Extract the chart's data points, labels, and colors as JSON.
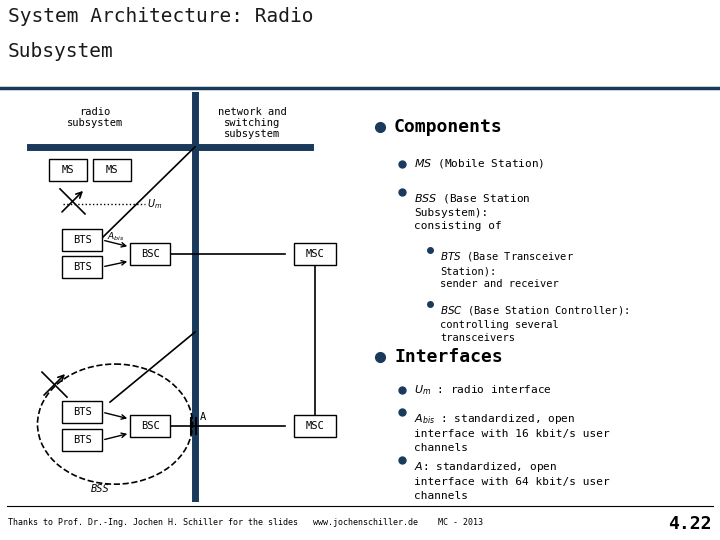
{
  "title_line1": "System Architecture: Radio",
  "title_line2": "Subsystem",
  "title_color": "#1a1a1a",
  "bg_color": "#ffffff",
  "dark_blue": "#1a3a5c",
  "footer": "Thanks to Prof. Dr.-Ing. Jochen H. Schiller for the slides   www.jochenschiller.de    MC - 2013",
  "footer_page": "4.22",
  "bullet_color": "#1a3a5c"
}
